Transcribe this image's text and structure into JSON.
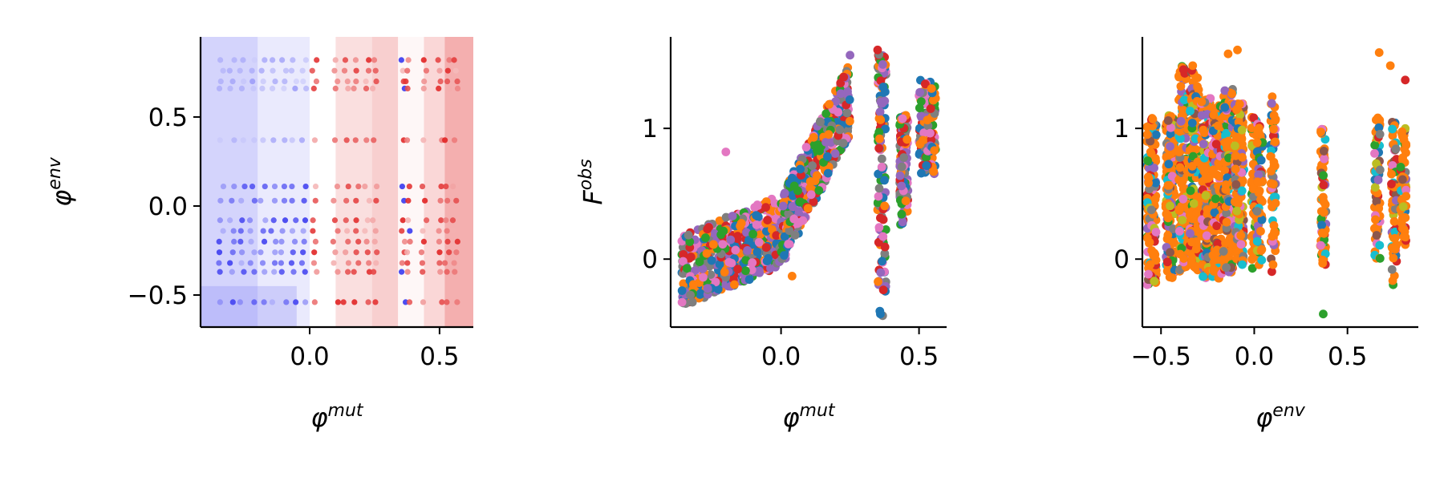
{
  "colors": {
    "heatmap_negative": "#3a3af0",
    "heatmap_positive": "#e02020",
    "axis": "#000000",
    "palette": [
      "#ff7f0e",
      "#2ca02c",
      "#d62728",
      "#1f77b4",
      "#9467bd",
      "#e377c2",
      "#7f7f7f",
      "#17becf",
      "#bcbd22",
      "#8c564b"
    ]
  },
  "chart_data": [
    {
      "type": "heatmap",
      "xlabel": "φ^mut",
      "ylabel": "φ^env",
      "x_label_base": "φ",
      "x_label_sup": "mut",
      "y_label_base": "φ",
      "y_label_sup": "env",
      "xlim": [
        -0.42,
        0.63
      ],
      "ylim": [
        -0.68,
        0.95
      ],
      "xticks": [
        0.0,
        0.5
      ],
      "xtick_labels": [
        "0.0",
        "0.5"
      ],
      "yticks": [
        -0.5,
        0.0,
        0.5
      ],
      "ytick_labels": [
        "−0.5",
        "0.0",
        "0.5"
      ],
      "diverging_scale": "blue (negative) – white – red (positive)",
      "contour_columns": [
        {
          "x": [
            -0.42,
            -0.2
          ],
          "value": -0.12
        },
        {
          "x": [
            -0.2,
            0.0
          ],
          "value": -0.06
        },
        {
          "x": [
            0.0,
            0.1
          ],
          "value": 0.0
        },
        {
          "x": [
            0.1,
            0.24
          ],
          "value": 0.08
        },
        {
          "x": [
            0.24,
            0.34
          ],
          "value": 0.12
        },
        {
          "x": [
            0.34,
            0.44
          ],
          "value": 0.02
        },
        {
          "x": [
            0.44,
            0.52
          ],
          "value": 0.1
        },
        {
          "x": [
            0.52,
            0.63
          ],
          "value": 0.2
        }
      ],
      "point_rows_y": [
        0.82,
        0.76,
        0.7,
        0.66,
        0.37,
        0.11,
        0.03,
        -0.08,
        -0.14,
        -0.2,
        -0.26,
        -0.32,
        -0.37,
        -0.54
      ],
      "point_columns_x": [
        -0.34,
        -0.3,
        -0.26,
        -0.22,
        -0.18,
        -0.14,
        -0.1,
        -0.06,
        -0.02,
        0.02,
        0.1,
        0.14,
        0.18,
        0.22,
        0.25,
        0.36,
        0.38,
        0.44,
        0.5,
        0.53,
        0.56
      ]
    },
    {
      "type": "scatter",
      "xlabel": "φ^mut",
      "ylabel": "F^obs",
      "x_label_base": "φ",
      "x_label_sup": "mut",
      "y_label_base": "F",
      "y_label_sup": "obs",
      "xlim": [
        -0.4,
        0.6
      ],
      "ylim": [
        -0.52,
        1.7
      ],
      "xticks": [
        0.0,
        0.5
      ],
      "xtick_labels": [
        "0.0",
        "0.5"
      ],
      "yticks": [
        0,
        1
      ],
      "ytick_labels": [
        "0",
        "1"
      ],
      "clusters": [
        {
          "x": [
            -0.36,
            0.0
          ],
          "y": [
            -0.2,
            0.82
          ],
          "trend": 0.15
        },
        {
          "x": [
            0.0,
            0.25
          ],
          "y": [
            0.1,
            1.3
          ],
          "trend": 3.0
        },
        {
          "x": [
            0.35,
            0.38
          ],
          "y": [
            -0.45,
            1.6
          ],
          "trend": 0
        },
        {
          "x": [
            0.43,
            0.46
          ],
          "y": [
            0.25,
            1.1
          ],
          "trend": 0
        },
        {
          "x": [
            0.5,
            0.56
          ],
          "y": [
            0.65,
            1.38
          ],
          "trend": 0
        }
      ],
      "highlighted_points": [
        {
          "x": 0.35,
          "y": 1.6
        },
        {
          "x": 0.36,
          "y": -0.42
        },
        {
          "x": 0.25,
          "y": 1.56
        },
        {
          "x": -0.2,
          "y": 0.82
        },
        {
          "x": 0.04,
          "y": -0.13
        }
      ]
    },
    {
      "type": "scatter",
      "xlabel": "φ^env",
      "ylabel": "",
      "x_label_base": "φ",
      "x_label_sup": "env",
      "xlim": [
        -0.6,
        0.88
      ],
      "ylim": [
        -0.52,
        1.7
      ],
      "xticks": [
        -0.5,
        0.0,
        0.5
      ],
      "xtick_labels": [
        "−0.5",
        "0.0",
        "0.5"
      ],
      "yticks": [
        0,
        1
      ],
      "ytick_labels": [
        "0",
        "1"
      ],
      "columns": [
        {
          "x": -0.55,
          "y": [
            -0.2,
            1.08
          ]
        },
        {
          "x": -0.45,
          "y": [
            -0.15,
            1.1
          ]
        },
        {
          "x": -0.38,
          "y": [
            -0.1,
            1.5
          ]
        },
        {
          "x": -0.32,
          "y": [
            -0.1,
            1.45
          ]
        },
        {
          "x": -0.26,
          "y": [
            -0.15,
            1.25
          ]
        },
        {
          "x": -0.2,
          "y": [
            -0.15,
            1.2
          ]
        },
        {
          "x": -0.14,
          "y": [
            -0.1,
            1.3
          ]
        },
        {
          "x": -0.08,
          "y": [
            -0.05,
            1.2
          ]
        },
        {
          "x": 0.0,
          "y": [
            -0.1,
            1.1
          ]
        },
        {
          "x": 0.03,
          "y": [
            -0.05,
            1.05
          ]
        },
        {
          "x": 0.1,
          "y": [
            -0.1,
            1.25
          ]
        },
        {
          "x": 0.37,
          "y": [
            -0.05,
            1.0
          ]
        },
        {
          "x": 0.66,
          "y": [
            0.0,
            1.1
          ]
        },
        {
          "x": 0.75,
          "y": [
            -0.2,
            1.05
          ]
        },
        {
          "x": 0.8,
          "y": [
            0.1,
            1.0
          ]
        }
      ],
      "highlighted_points": [
        {
          "x": 0.37,
          "y": -0.42
        },
        {
          "x": 0.67,
          "y": 1.58
        },
        {
          "x": 0.73,
          "y": 1.48
        },
        {
          "x": 0.81,
          "y": 1.37
        },
        {
          "x": -0.09,
          "y": 1.6
        },
        {
          "x": -0.14,
          "y": 1.57
        },
        {
          "x": -0.38,
          "y": 1.45
        },
        {
          "x": -0.33,
          "y": 1.48
        }
      ]
    }
  ]
}
